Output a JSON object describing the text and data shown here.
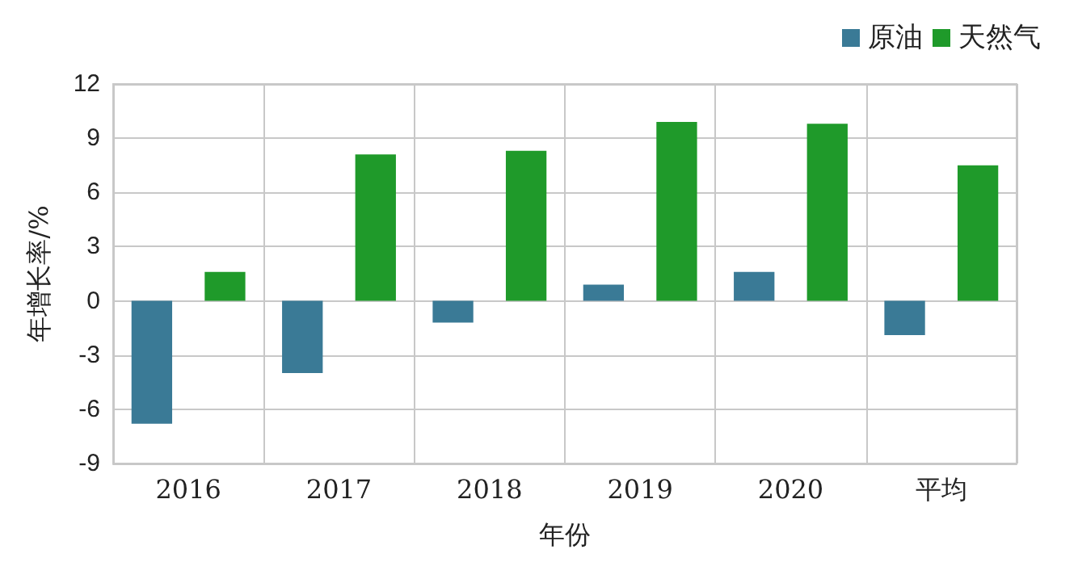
{
  "chart_data": {
    "type": "bar",
    "xlabel": "年份",
    "ylabel": "年增长率/%",
    "categories": [
      "2016",
      "2017",
      "2018",
      "2019",
      "2020",
      "平均"
    ],
    "series": [
      {
        "name": "原油",
        "color": "#3a7a96",
        "values": [
          -6.8,
          -4.0,
          -1.2,
          0.9,
          1.6,
          -1.9
        ]
      },
      {
        "name": "天然气",
        "color": "#1f9a2a",
        "values": [
          1.6,
          8.1,
          8.3,
          9.9,
          9.8,
          7.5
        ]
      }
    ],
    "ylim": [
      -9,
      12
    ],
    "yticks": [
      -9,
      -6,
      -3,
      0,
      3,
      6,
      9,
      12
    ],
    "grid": true,
    "legend": "top right"
  }
}
